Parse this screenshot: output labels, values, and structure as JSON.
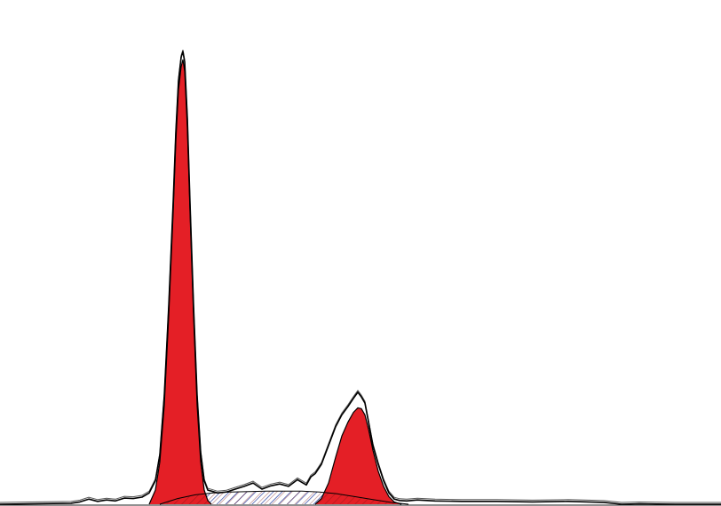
{
  "chart_data": {
    "type": "area",
    "title": "",
    "xlabel": "",
    "ylabel": "",
    "xlim": [
      0,
      812
    ],
    "ylim": [
      0,
      100
    ],
    "grid": false,
    "legend": "none",
    "colors": {
      "fill_peak": "#e41f26",
      "outline": "#000000",
      "s_phase_hatch": "#2b3fa0",
      "background": "#ffffff"
    },
    "series": [
      {
        "role": "histogram-trace",
        "x": [
          0,
          80,
          90,
          100,
          110,
          120,
          130,
          140,
          150,
          160,
          168,
          175,
          180,
          185,
          190,
          195,
          198,
          201,
          204,
          206,
          208,
          211,
          214,
          218,
          222,
          226,
          230,
          234,
          238,
          245,
          255,
          265,
          275,
          285,
          295,
          305,
          315,
          325,
          335,
          345,
          350,
          355,
          362,
          370,
          378,
          385,
          392,
          398,
          403,
          407,
          411,
          415,
          420,
          426,
          432,
          438,
          444,
          450,
          458,
          470,
          490,
          520,
          560,
          600,
          640,
          680,
          700,
          720,
          760,
          812
        ],
        "y": [
          0,
          0.2,
          0.5,
          1.1,
          0.6,
          0.9,
          0.7,
          1.3,
          1.2,
          1.5,
          2.4,
          5.0,
          10.5,
          23.0,
          42.0,
          64.0,
          79.0,
          90.0,
          95.0,
          96.2,
          94.0,
          82.0,
          64.0,
          42.0,
          23.0,
          11.0,
          5.0,
          3.0,
          2.8,
          2.4,
          2.6,
          3.2,
          3.8,
          4.5,
          3.2,
          3.9,
          4.3,
          3.8,
          5.2,
          4.1,
          5.8,
          6.5,
          8.5,
          12.5,
          16.5,
          19.0,
          20.8,
          22.5,
          23.8,
          22.8,
          21.5,
          17.5,
          12.5,
          8.5,
          5.0,
          2.4,
          1.1,
          0.8,
          0.7,
          0.9,
          0.7,
          0.6,
          0.6,
          0.5,
          0.6,
          0.4,
          0.0,
          0.1,
          0.0,
          0.0
        ]
      },
      {
        "role": "g0-g1-fit",
        "x": [
          168,
          175,
          180,
          185,
          190,
          195,
          198,
          201,
          204,
          206,
          208,
          211,
          214,
          218,
          222,
          226,
          230,
          234,
          238
        ],
        "y": [
          0.0,
          3.0,
          9.0,
          21.0,
          40.0,
          62.0,
          77.0,
          88.0,
          93.0,
          94.5,
          92.0,
          80.0,
          62.0,
          40.0,
          21.0,
          9.0,
          3.0,
          0.8,
          0.0
        ]
      },
      {
        "role": "g2-m-fit",
        "x": [
          355,
          362,
          370,
          378,
          385,
          392,
          398,
          403,
          407,
          411,
          415,
          420,
          426,
          432,
          438,
          444,
          452
        ],
        "y": [
          0.0,
          1.2,
          4.5,
          10.0,
          14.5,
          17.5,
          19.5,
          20.5,
          20.3,
          19.0,
          16.0,
          11.5,
          7.0,
          3.8,
          1.6,
          0.5,
          0.0
        ]
      },
      {
        "role": "s-phase-fit",
        "x": [
          180,
          200,
          220,
          240,
          260,
          280,
          300,
          320,
          340,
          360,
          380,
          400,
          420,
          440,
          460
        ],
        "y": [
          0.0,
          1.2,
          2.0,
          2.4,
          2.6,
          2.7,
          2.8,
          2.8,
          2.8,
          2.6,
          2.2,
          1.6,
          1.0,
          0.4,
          0.0
        ]
      }
    ]
  }
}
